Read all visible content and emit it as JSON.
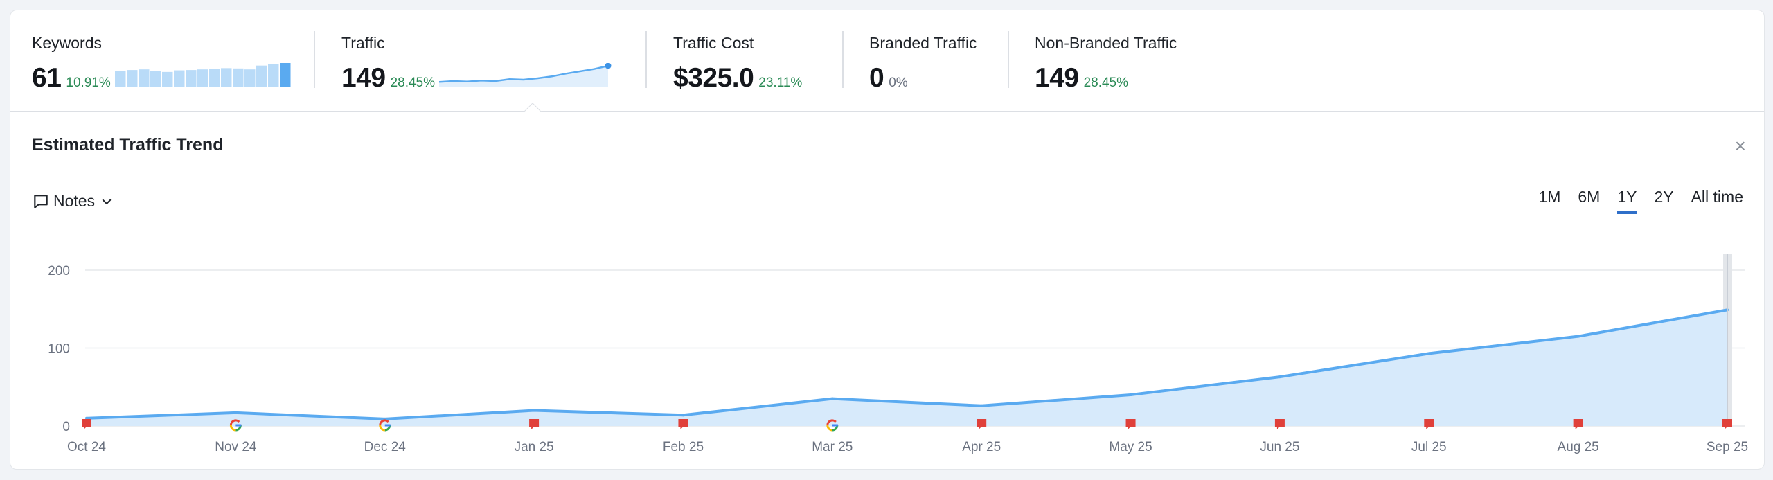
{
  "metrics": [
    {
      "label": "Keywords",
      "value": "61",
      "pct": "10.91%",
      "pct_style": "green"
    },
    {
      "label": "Traffic",
      "value": "149",
      "pct": "28.45%",
      "pct_style": "green"
    },
    {
      "label": "Traffic Cost",
      "value": "$325.0",
      "pct": "23.11%",
      "pct_style": "green"
    },
    {
      "label": "Branded Traffic",
      "value": "0",
      "pct": "0%",
      "pct_style": "gray"
    },
    {
      "label": "Non-Branded Traffic",
      "value": "149",
      "pct": "28.45%",
      "pct_style": "green"
    }
  ],
  "keywords_bars": [
    48,
    52,
    54,
    50,
    46,
    51,
    52,
    54,
    55,
    58,
    57,
    54,
    66,
    70,
    74
  ],
  "traffic_spark": [
    10,
    12,
    11,
    13,
    12,
    16,
    15,
    18,
    22,
    28,
    33,
    38,
    45
  ],
  "panel": {
    "title": "Estimated Traffic Trend",
    "close": "×",
    "notes_label": "Notes"
  },
  "ranges": [
    {
      "label": "1M",
      "active": false
    },
    {
      "label": "6M",
      "active": false
    },
    {
      "label": "1Y",
      "active": true
    },
    {
      "label": "2Y",
      "active": false
    },
    {
      "label": "All time",
      "active": false
    }
  ],
  "colors": {
    "line": "#5aaaf0",
    "area": "#d7eafb",
    "accent": "#2f6fc9",
    "green": "#2a8a55",
    "flag": "#e0403a"
  },
  "chart_data": {
    "type": "area",
    "categories": [
      "Oct 24",
      "Nov 24",
      "Dec 24",
      "Jan 25",
      "Feb 25",
      "Mar 25",
      "Apr 25",
      "May 25",
      "Jun 25",
      "Jul 25",
      "Aug 25",
      "Sep 25"
    ],
    "values": [
      10,
      17,
      9,
      20,
      14,
      35,
      26,
      40,
      63,
      93,
      115,
      149
    ],
    "yticks": [
      "0",
      "100",
      "200"
    ],
    "ylim": [
      0,
      200
    ],
    "grid": true,
    "markers": [
      "flag",
      "google",
      "google",
      "flag",
      "flag",
      "google",
      "flag",
      "flag",
      "flag",
      "flag",
      "flag",
      "flag"
    ]
  }
}
